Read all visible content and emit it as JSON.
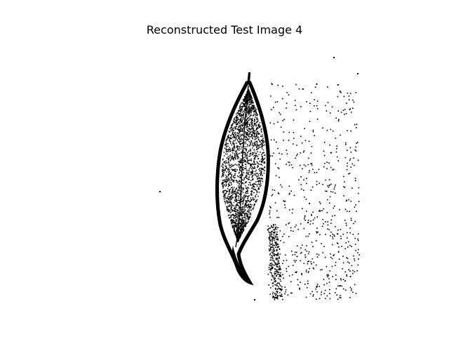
{
  "figure": {
    "title": "Reconstructed Test Image 4",
    "image": {
      "subject": "binary image of a leaf with a speckled grey-noise background region",
      "colormap": "binary",
      "colors": {
        "foreground": "#000000",
        "background": "#ffffff"
      },
      "axis": "off"
    }
  }
}
